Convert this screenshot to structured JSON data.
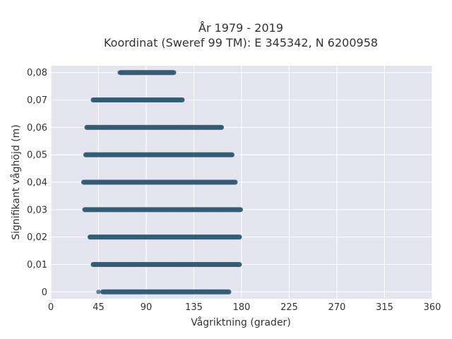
{
  "chart_data": {
    "type": "scatter",
    "title_line1": "År 1979 - 2019",
    "title_line2": "Koordinat (Sweref 99 TM): E 345342, N 6200958",
    "xlabel": "Vågriktning (grader)",
    "ylabel": "Signifikant våghöjd (m)",
    "xlim": [
      0,
      360
    ],
    "ylim": [
      -0.0025,
      0.0825
    ],
    "x_ticks": [
      0,
      45,
      90,
      135,
      180,
      225,
      270,
      315,
      360
    ],
    "x_tick_labels": [
      "0",
      "45",
      "90",
      "135",
      "180",
      "225",
      "270",
      "315",
      "360"
    ],
    "y_ticks": [
      0,
      0.01,
      0.02,
      0.03,
      0.04,
      0.05,
      0.06,
      0.07,
      0.08
    ],
    "y_tick_labels": [
      "0",
      "0,01",
      "0,02",
      "0,03",
      "0,04",
      "0,05",
      "0,06",
      "0,07",
      "0,08"
    ],
    "grid": true,
    "marker_color": "#2f5a73",
    "plot_bg": "#e5e5f0",
    "series": [
      {
        "bands": [
          {
            "y": 0.0,
            "x_min": 49,
            "x_max": 168
          },
          {
            "y": 0.01,
            "x_min": 40,
            "x_max": 178
          },
          {
            "y": 0.02,
            "x_min": 37,
            "x_max": 178
          },
          {
            "y": 0.03,
            "x_min": 32,
            "x_max": 179
          },
          {
            "y": 0.04,
            "x_min": 31,
            "x_max": 174
          },
          {
            "y": 0.05,
            "x_min": 33,
            "x_max": 171
          },
          {
            "y": 0.06,
            "x_min": 34,
            "x_max": 161
          },
          {
            "y": 0.07,
            "x_min": 40,
            "x_max": 124
          },
          {
            "y": 0.08,
            "x_min": 66,
            "x_max": 116
          }
        ],
        "outliers": [
          {
            "x": 45,
            "y": 0.0
          },
          {
            "x": 161,
            "y": 0.06
          },
          {
            "x": 65,
            "y": 0.08
          }
        ]
      }
    ]
  }
}
